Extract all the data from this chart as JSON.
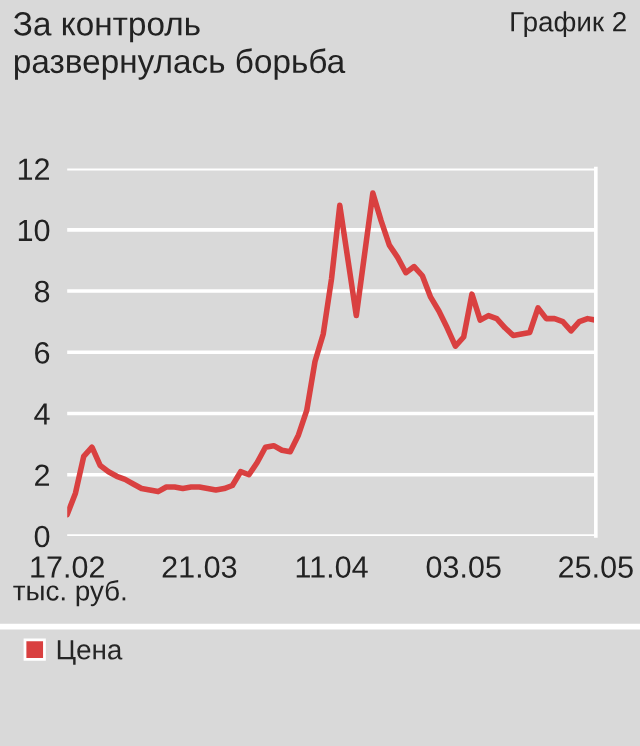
{
  "chart_data": {
    "type": "line",
    "title": "За контроль\nразвернулась борьба",
    "annotations": [
      "График 2"
    ],
    "ylabel": "тыс. руб.",
    "categories": [
      "17.02",
      null,
      null,
      null,
      null,
      null,
      null,
      null,
      null,
      null,
      null,
      null,
      null,
      null,
      null,
      null,
      "21.03",
      null,
      null,
      null,
      null,
      null,
      null,
      null,
      null,
      null,
      null,
      null,
      null,
      null,
      null,
      null,
      "11.04",
      null,
      null,
      null,
      null,
      null,
      null,
      null,
      null,
      null,
      null,
      null,
      null,
      null,
      null,
      null,
      "03.05",
      null,
      null,
      null,
      null,
      null,
      null,
      null,
      null,
      null,
      null,
      null,
      null,
      null,
      null,
      null,
      "25.05"
    ],
    "series": [
      {
        "name": "Цена",
        "color": "#d94040",
        "values": [
          0.7,
          1.4,
          2.6,
          2.9,
          2.3,
          2.1,
          1.95,
          1.85,
          1.7,
          1.55,
          1.5,
          1.45,
          1.6,
          1.6,
          1.55,
          1.6,
          1.6,
          1.55,
          1.5,
          1.55,
          1.65,
          2.1,
          2.0,
          2.4,
          2.9,
          2.95,
          2.8,
          2.75,
          3.3,
          4.1,
          5.7,
          6.6,
          8.4,
          10.8,
          9.0,
          7.2,
          9.2,
          11.2,
          10.3,
          9.5,
          9.1,
          8.6,
          8.8,
          8.5,
          7.8,
          7.35,
          6.8,
          6.2,
          6.5,
          7.9,
          7.05,
          7.2,
          7.1,
          6.8,
          6.55,
          6.6,
          6.65,
          7.45,
          7.1,
          7.1,
          7.0,
          6.7,
          7.0,
          7.1,
          7.05
        ]
      }
    ],
    "ylim": [
      0,
      12
    ],
    "yticks": [
      0,
      2,
      4,
      6,
      8,
      10,
      12
    ],
    "grid": "y",
    "legend": "bottom left",
    "marker": "none",
    "line_style": "solid"
  }
}
